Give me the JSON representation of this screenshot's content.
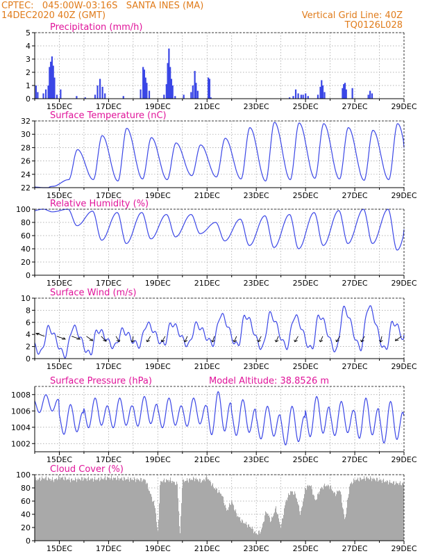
{
  "header": {
    "line1_left": "CPTEC:   045:00W-03:16S   SANTA INES (MA)",
    "line2_left": "14DEC2020 40Z (GMT)",
    "line1_right": "Vertical Grid Line: 40Z",
    "line2_right": "TQ0126L028"
  },
  "colors": {
    "header": "#e07b1a",
    "title": "#e0149a",
    "series": "#3a46e6",
    "cloud": "#a9a9a9",
    "grid": "#9a9a9a"
  },
  "x_ticks": [
    "15DEC",
    "17DEC",
    "19DEC",
    "21DEC",
    "23DEC",
    "25DEC",
    "27DEC",
    "29DEC"
  ],
  "chart_data": [
    {
      "type": "bar",
      "title": "Precipitation (mm/h)",
      "ylim": [
        0,
        5
      ],
      "yticks": [
        0,
        1,
        2,
        3,
        4,
        5
      ],
      "x_start": 14.0,
      "x_end": 29.0,
      "bars": [
        [
          14.05,
          1.0
        ],
        [
          14.12,
          0.5
        ],
        [
          14.35,
          0.4
        ],
        [
          14.45,
          0.7
        ],
        [
          14.55,
          1.0
        ],
        [
          14.6,
          2.4
        ],
        [
          14.65,
          2.8
        ],
        [
          14.7,
          3.2
        ],
        [
          14.75,
          2.5
        ],
        [
          14.8,
          1.6
        ],
        [
          14.9,
          0.3
        ],
        [
          15.05,
          0.7
        ],
        [
          15.7,
          0.2
        ],
        [
          16.05,
          0.1
        ],
        [
          16.45,
          0.3
        ],
        [
          16.55,
          1.0
        ],
        [
          16.65,
          1.5
        ],
        [
          16.75,
          0.9
        ],
        [
          16.85,
          0.4
        ],
        [
          17.6,
          0.2
        ],
        [
          18.3,
          0.7
        ],
        [
          18.4,
          2.4
        ],
        [
          18.45,
          2.2
        ],
        [
          18.5,
          1.6
        ],
        [
          18.55,
          1.2
        ],
        [
          18.65,
          0.6
        ],
        [
          19.25,
          0.3
        ],
        [
          19.35,
          1.1
        ],
        [
          19.4,
          2.7
        ],
        [
          19.45,
          3.8
        ],
        [
          19.5,
          2.4
        ],
        [
          19.55,
          1.5
        ],
        [
          19.6,
          1.0
        ],
        [
          19.7,
          0.2
        ],
        [
          20.05,
          0.3
        ],
        [
          20.35,
          0.5
        ],
        [
          20.42,
          1.0
        ],
        [
          20.5,
          2.1
        ],
        [
          20.55,
          1.2
        ],
        [
          20.62,
          0.6
        ],
        [
          21.05,
          1.6
        ],
        [
          21.1,
          1.5
        ],
        [
          21.15,
          0.1
        ],
        [
          24.35,
          0.1
        ],
        [
          24.5,
          0.2
        ],
        [
          24.6,
          0.7
        ],
        [
          24.7,
          0.4
        ],
        [
          24.82,
          0.3
        ],
        [
          24.9,
          0.3
        ],
        [
          25.0,
          0.4
        ],
        [
          25.1,
          0.2
        ],
        [
          25.5,
          0.3
        ],
        [
          25.6,
          0.9
        ],
        [
          25.65,
          1.4
        ],
        [
          25.7,
          1.0
        ],
        [
          25.77,
          0.5
        ],
        [
          26.5,
          0.8
        ],
        [
          26.55,
          1.1
        ],
        [
          26.6,
          1.2
        ],
        [
          26.65,
          0.7
        ],
        [
          26.9,
          0.8
        ],
        [
          27.55,
          0.3
        ],
        [
          27.62,
          0.6
        ],
        [
          27.7,
          0.4
        ]
      ]
    },
    {
      "type": "line",
      "title": "Surface Temperature (nC)",
      "ylim": [
        22,
        32
      ],
      "yticks": [
        22,
        24,
        26,
        28,
        30,
        32
      ],
      "x_start": 14.0,
      "x_end": 29.0,
      "daily_min": [
        21.9,
        23.2,
        23.2,
        23.0,
        23.3,
        23.2,
        23.8,
        23.6,
        23.3,
        23.0,
        23.2,
        23.4,
        23.3,
        23.1,
        23.2
      ],
      "daily_max": [
        22.2,
        27.7,
        29.8,
        30.9,
        29.5,
        28.7,
        28.4,
        29.4,
        31.0,
        31.8,
        31.7,
        31.6,
        31.0,
        30.6,
        31.6
      ],
      "last_value": 28.2
    },
    {
      "type": "line",
      "title": "Relative Humidity (%)",
      "ylim": [
        0,
        100
      ],
      "yticks": [
        0,
        20,
        40,
        60,
        80,
        100
      ],
      "x_start": 14.0,
      "x_end": 29.0,
      "daily_min": [
        96,
        75,
        53,
        48,
        55,
        58,
        63,
        52,
        45,
        42,
        40,
        45,
        48,
        48,
        38
      ],
      "daily_max": [
        100,
        100,
        97,
        95,
        95,
        92,
        92,
        80,
        85,
        90,
        92,
        95,
        98,
        100,
        100
      ],
      "last_value": 62
    },
    {
      "type": "line",
      "title": "Surface Wind (m/s)",
      "ylim": [
        0,
        10
      ],
      "yticks": [
        0,
        2,
        4,
        6,
        8,
        10
      ],
      "x_start": 14.0,
      "x_end": 29.0,
      "daily_min": [
        1.0,
        0.6,
        0.8,
        2.0,
        2.2,
        2.4,
        2.3,
        2.5,
        2.2,
        1.8,
        2.0,
        1.6,
        1.4,
        1.8,
        1.5
      ],
      "daily_max": [
        5.0,
        5.2,
        4.7,
        4.6,
        5.7,
        5.8,
        5.6,
        7.2,
        7.1,
        7.3,
        7.0,
        7.1,
        8.2,
        8.6,
        6.0
      ],
      "last_value": 4.7,
      "arrows_x": [
        14.4,
        14.9,
        15.5,
        16.1,
        16.7,
        17.3,
        18.0,
        18.7,
        19.3,
        20.2,
        21.3,
        22.2,
        23.2,
        23.9,
        24.7,
        25.7,
        26.4,
        27.4,
        28.1,
        28.9
      ],
      "arrows_direction": [
        150,
        330,
        330,
        310,
        300,
        290,
        265,
        250,
        250,
        255,
        258,
        255,
        252,
        255,
        250,
        255,
        248,
        250,
        262,
        230
      ]
    },
    {
      "type": "line",
      "title": "Surface Pressure (hPa)",
      "annotation": "Model Altitude: 38.8526 m",
      "ylim": [
        1001,
        1009
      ],
      "yticks": [
        1002,
        1004,
        1006,
        1008
      ],
      "x_start": 14.0,
      "x_end": 29.0,
      "cycle_max": [
        1008.0,
        1006.8,
        1007.6,
        1007.6,
        1007.8,
        1007.6,
        1007.6,
        1008.4,
        1007.4,
        1006.6,
        1006.6,
        1007.8,
        1007.2,
        1007.6,
        1007.2
      ],
      "cycle_min": [
        1005.6,
        1002.8,
        1003.6,
        1003.6,
        1003.8,
        1003.6,
        1003.8,
        1002.6,
        1002.6,
        1002.2,
        1001.4,
        1002.4,
        1002.6,
        1002.2,
        1001.6
      ],
      "last_value": 1005.2
    },
    {
      "type": "bar",
      "title": "Cloud Cover (%)",
      "ylim": [
        0,
        100
      ],
      "yticks": [
        0,
        20,
        40,
        60,
        80,
        100
      ],
      "x_start": 14.0,
      "x_end": 29.0,
      "anchors": [
        [
          14.0,
          92
        ],
        [
          14.4,
          95
        ],
        [
          14.8,
          92
        ],
        [
          15.0,
          96
        ],
        [
          15.5,
          92
        ],
        [
          16.0,
          94
        ],
        [
          16.5,
          93
        ],
        [
          17.0,
          95
        ],
        [
          17.5,
          94
        ],
        [
          18.0,
          93
        ],
        [
          18.5,
          92
        ],
        [
          18.9,
          50
        ],
        [
          19.0,
          8
        ],
        [
          19.1,
          90
        ],
        [
          19.5,
          92
        ],
        [
          19.8,
          85
        ],
        [
          19.9,
          5
        ],
        [
          20.0,
          90
        ],
        [
          20.5,
          94
        ],
        [
          20.8,
          90
        ],
        [
          21.0,
          96
        ],
        [
          21.3,
          80
        ],
        [
          21.6,
          70
        ],
        [
          21.8,
          45
        ],
        [
          22.0,
          60
        ],
        [
          22.2,
          40
        ],
        [
          22.4,
          30
        ],
        [
          22.6,
          25
        ],
        [
          22.8,
          20
        ],
        [
          23.0,
          10
        ],
        [
          23.2,
          15
        ],
        [
          23.4,
          45
        ],
        [
          23.6,
          30
        ],
        [
          23.8,
          50
        ],
        [
          24.0,
          20
        ],
        [
          24.2,
          60
        ],
        [
          24.4,
          75
        ],
        [
          24.6,
          70
        ],
        [
          24.8,
          40
        ],
        [
          25.0,
          80
        ],
        [
          25.2,
          85
        ],
        [
          25.4,
          60
        ],
        [
          25.6,
          78
        ],
        [
          25.8,
          84
        ],
        [
          26.0,
          82
        ],
        [
          26.2,
          70
        ],
        [
          26.4,
          78
        ],
        [
          26.6,
          30
        ],
        [
          26.8,
          85
        ],
        [
          27.0,
          92
        ],
        [
          27.5,
          95
        ],
        [
          28.0,
          92
        ],
        [
          28.5,
          88
        ],
        [
          29.0,
          86
        ]
      ]
    }
  ]
}
